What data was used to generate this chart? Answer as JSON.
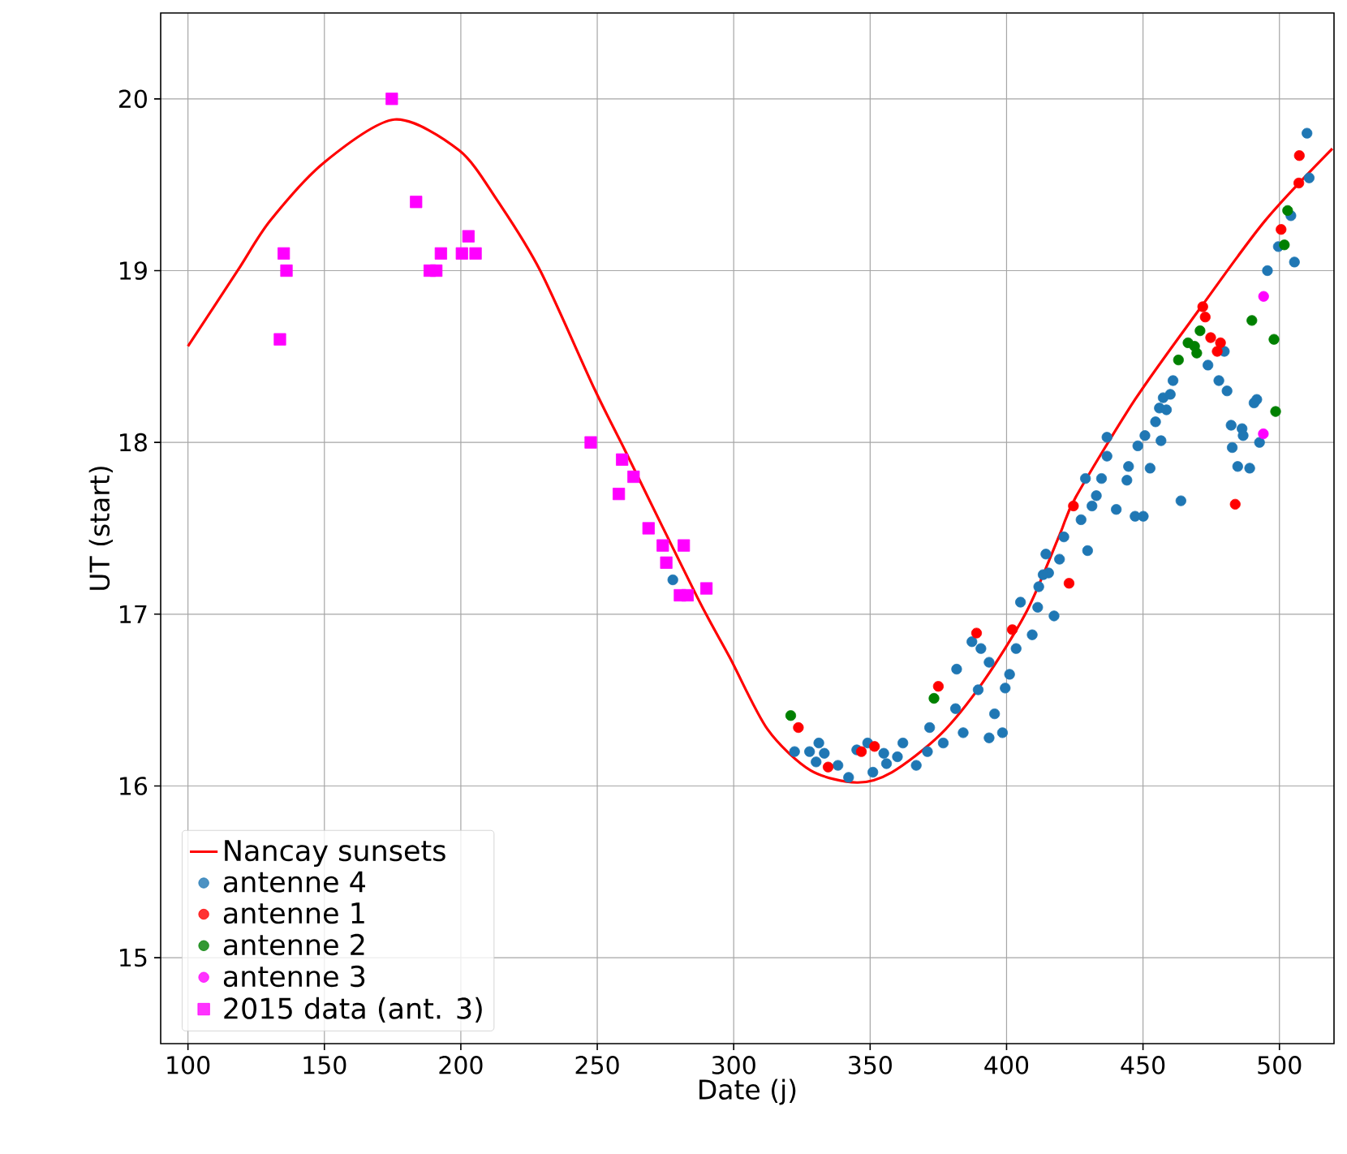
{
  "chart_data": {
    "type": "scatter",
    "xlabel": "Date (j)",
    "ylabel": "UT (start)",
    "xlim": [
      90,
      520
    ],
    "ylim": [
      14.5,
      20.5
    ],
    "xticks": [
      100,
      150,
      200,
      250,
      300,
      350,
      400,
      450,
      500
    ],
    "yticks": [
      15,
      16,
      17,
      18,
      19,
      20
    ],
    "grid": true,
    "legend": "bottom left",
    "series": [
      {
        "name": "Nancay sunsets",
        "type": "line",
        "color": "#ff0000",
        "marker": "none",
        "line_style": "solid",
        "x": [
          100,
          118.2,
          130.1,
          149.9,
          175.7,
          199.4,
          213.3,
          229.1,
          249.0,
          260.9,
          286.6,
          298.5,
          312.4,
          328.2,
          345.1,
          358.0,
          375.8,
          391.6,
          407.5,
          419.4,
          425.3,
          447.1,
          470.9,
          494.7,
          519.4
        ],
        "values": [
          18.56,
          19.0,
          19.29,
          19.63,
          19.88,
          19.7,
          19.41,
          19.0,
          18.31,
          17.93,
          17.1,
          16.75,
          16.33,
          16.09,
          16.02,
          16.08,
          16.3,
          16.61,
          17.02,
          17.46,
          17.68,
          18.25,
          18.78,
          19.29,
          19.71
        ]
      },
      {
        "name": "antenne 4",
        "color": "#1f77b4",
        "marker": "circle",
        "x": [
          277.7,
          322.3,
          327.8,
          331.2,
          333.2,
          330.2,
          338.2,
          342.1,
          345.1,
          349.1,
          351.0,
          355.0,
          356.0,
          360.0,
          362.0,
          366.9,
          371.0,
          371.8,
          376.8,
          381.3,
          381.7,
          384.1,
          389.6,
          387.3,
          390.6,
          393.6,
          395.6,
          393.6,
          398.5,
          399.5,
          401.1,
          403.5,
          405.1,
          409.4,
          411.4,
          417.4,
          415.4,
          419.4,
          414.4,
          411.8,
          413.4,
          421.0,
          429.7,
          427.3,
          431.3,
          432.9,
          428.9,
          434.8,
          436.8,
          436.8,
          440.2,
          444.7,
          444.1,
          447.1,
          450.1,
          448.1,
          450.7,
          452.6,
          454.6,
          456.6,
          456.0,
          458.6,
          457.4,
          460.0,
          461.0,
          463.9,
          473.8,
          477.8,
          480.8,
          479.8,
          482.3,
          482.7,
          484.7,
          486.3,
          486.7,
          489.1,
          490.7,
          491.7,
          492.7,
          495.6,
          499.6,
          504.2,
          505.5,
          510.9,
          510.1
        ],
        "values": [
          17.2,
          16.2,
          16.2,
          16.25,
          16.19,
          16.14,
          16.12,
          16.05,
          16.21,
          16.25,
          16.08,
          16.19,
          16.13,
          16.17,
          16.25,
          16.12,
          16.2,
          16.34,
          16.25,
          16.45,
          16.68,
          16.31,
          16.56,
          16.84,
          16.8,
          16.72,
          16.42,
          16.28,
          16.31,
          16.57,
          16.65,
          16.8,
          17.07,
          16.88,
          17.04,
          16.99,
          17.24,
          17.32,
          17.35,
          17.16,
          17.23,
          17.45,
          17.37,
          17.55,
          17.63,
          17.69,
          17.79,
          17.79,
          17.92,
          18.03,
          17.61,
          17.86,
          17.78,
          17.57,
          17.57,
          17.98,
          18.04,
          17.85,
          18.12,
          18.01,
          18.2,
          18.19,
          18.26,
          18.28,
          18.36,
          17.66,
          18.45,
          18.36,
          18.3,
          18.53,
          18.1,
          17.97,
          17.86,
          18.08,
          18.04,
          17.85,
          18.23,
          18.25,
          18.0,
          19.0,
          19.14,
          19.32,
          19.05,
          19.54,
          19.8
        ]
      },
      {
        "name": "antenne 1",
        "color": "#ff0000",
        "marker": "circle",
        "x": [
          323.7,
          334.6,
          346.8,
          351.6,
          375.0,
          389.0,
          402.1,
          422.9,
          424.5,
          471.9,
          472.8,
          474.8,
          478.4,
          477.2,
          483.8,
          500.6,
          507.1,
          507.3
        ],
        "values": [
          16.34,
          16.11,
          16.2,
          16.23,
          16.58,
          16.89,
          16.91,
          17.18,
          17.63,
          18.79,
          18.73,
          18.61,
          18.58,
          18.53,
          17.64,
          19.24,
          19.51,
          19.67
        ]
      },
      {
        "name": "antenne 2",
        "color": "#008000",
        "marker": "circle",
        "x": [
          320.9,
          373.4,
          463.0,
          466.5,
          468.9,
          469.7,
          470.9,
          489.9,
          498.0,
          498.6,
          501.8,
          503.0
        ],
        "values": [
          16.41,
          16.51,
          18.48,
          18.58,
          18.56,
          18.52,
          18.65,
          18.71,
          18.6,
          18.18,
          19.15,
          19.35
        ]
      },
      {
        "name": "antenne 3",
        "color": "#ff00ff",
        "marker": "circle",
        "x": [
          494.2,
          494.1
        ],
        "values": [
          18.85,
          18.05
        ]
      },
      {
        "name": "2015 data (ant. 3)",
        "color": "#ff00ff",
        "marker": "square",
        "x": [
          135.1,
          136.1,
          133.7,
          174.7,
          183.6,
          192.7,
          188.6,
          191.0,
          202.8,
          200.4,
          205.4,
          247.6,
          259.1,
          263.3,
          257.9,
          268.8,
          274.0,
          281.7,
          275.3,
          280.3,
          283.1,
          290.0
        ],
        "values": [
          19.1,
          19.0,
          18.6,
          20.0,
          19.4,
          19.1,
          19.0,
          19.0,
          19.2,
          19.1,
          19.1,
          18.0,
          17.9,
          17.8,
          17.7,
          17.5,
          17.4,
          17.4,
          17.3,
          17.11,
          17.11,
          17.15
        ]
      }
    ]
  }
}
